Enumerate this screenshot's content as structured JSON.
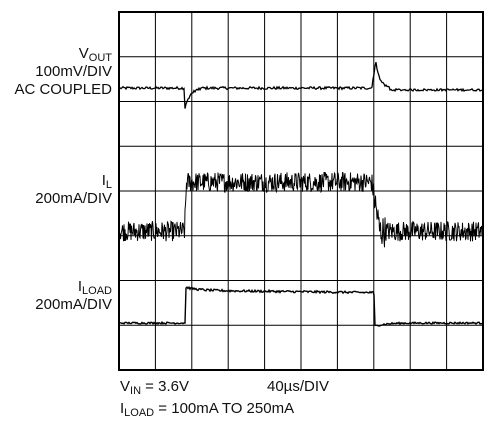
{
  "labels": {
    "vout": {
      "sym": "V",
      "sub": "OUT",
      "scale": "100mV/DIV",
      "note": "AC COUPLED"
    },
    "il": {
      "sym": "I",
      "sub": "L",
      "scale": "200mA/DIV"
    },
    "iload": {
      "sym": "I",
      "sub": "LOAD",
      "scale": "200mA/DIV"
    }
  },
  "footer": {
    "vin_sym": "V",
    "vin_sub": "IN",
    "vin_val": " = 3.6V",
    "timebase": "40µs/DIV",
    "iload_sym": "I",
    "iload_sub": "LOAD",
    "iload_val": " = 100mA TO 250mA"
  },
  "colors": {
    "trace": "#000000",
    "grid": "#000000",
    "background": "#ffffff"
  },
  "chart_data": {
    "type": "line",
    "divisions": {
      "x": 10,
      "y": 8
    },
    "time_per_div_us": 40,
    "step_up_time_us": 72,
    "step_down_time_us": 280,
    "series": [
      {
        "name": "VOUT",
        "units_per_div": "100mV",
        "coupling": "AC",
        "baseline_div": 6.3,
        "undershoot_div": -0.5,
        "overshoot_div": 0.6
      },
      {
        "name": "IL",
        "units_per_div": "200mA",
        "low_center_div": 3.1,
        "high_center_div": 4.2,
        "ripple_pp_div": 0.45
      },
      {
        "name": "ILOAD",
        "units_per_div": "200mA",
        "low_level_div": 1.05,
        "high_level_div": 1.78
      }
    ]
  }
}
